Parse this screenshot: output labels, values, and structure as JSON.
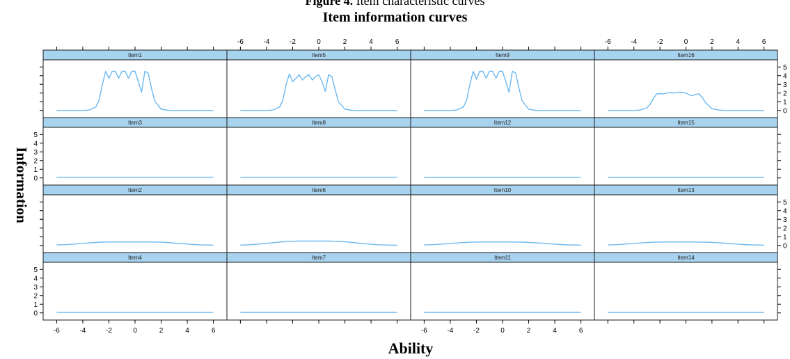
{
  "figure_caption": {
    "bold": "Figure 4.",
    "rest": " Item characteristic curves"
  },
  "chart_data": {
    "type": "line",
    "title": "Item information curves",
    "xlabel": "Ability",
    "ylabel": "Information",
    "xlim": [
      -6.5,
      6.5
    ],
    "ylim": [
      -0.5,
      5.5
    ],
    "xticks": [
      -6,
      -4,
      -2,
      0,
      2,
      4,
      6
    ],
    "yticks": [
      0,
      1,
      2,
      3,
      4,
      5
    ],
    "grid": false,
    "layout": {
      "rows": 4,
      "cols": 4
    },
    "x": [
      -6,
      -5.5,
      -5,
      -4.5,
      -4,
      -3.5,
      -3,
      -2.75,
      -2.5,
      -2.25,
      -2,
      -1.75,
      -1.5,
      -1.25,
      -1,
      -0.75,
      -0.5,
      -0.25,
      0,
      0.25,
      0.5,
      0.75,
      1,
      1.25,
      1.5,
      2,
      2.5,
      3,
      3.5,
      4,
      4.5,
      5,
      5.5,
      6
    ],
    "panels": [
      {
        "name": "Item1",
        "values": [
          0,
          0,
          0,
          0,
          0,
          0.05,
          0.4,
          1.2,
          3.0,
          4.5,
          3.7,
          4.5,
          4.5,
          3.7,
          4.5,
          4.5,
          3.7,
          4.5,
          4.5,
          3.3,
          2.1,
          4.5,
          4.3,
          2.6,
          1.1,
          0.15,
          0.02,
          0,
          0,
          0,
          0,
          0,
          0,
          0
        ]
      },
      {
        "name": "Item5",
        "values": [
          0,
          0,
          0,
          0,
          0,
          0.05,
          0.4,
          1.2,
          3.0,
          4.2,
          3.3,
          3.7,
          4.1,
          3.5,
          3.9,
          4.1,
          3.5,
          3.9,
          4.1,
          3.3,
          2.2,
          4.1,
          3.9,
          2.4,
          1.0,
          0.15,
          0.02,
          0,
          0,
          0,
          0,
          0,
          0,
          0
        ]
      },
      {
        "name": "Item9",
        "values": [
          0,
          0,
          0,
          0,
          0,
          0.05,
          0.4,
          1.2,
          3.0,
          4.5,
          3.6,
          4.5,
          4.5,
          3.7,
          4.5,
          4.5,
          3.7,
          4.5,
          4.5,
          3.3,
          2.1,
          4.5,
          4.3,
          2.6,
          1.1,
          0.15,
          0.02,
          0,
          0,
          0,
          0,
          0,
          0,
          0
        ]
      },
      {
        "name": "Item16",
        "values": [
          0,
          0,
          0,
          0,
          0,
          0.05,
          0.3,
          0.7,
          1.4,
          1.9,
          1.95,
          1.9,
          2.0,
          2.05,
          2.0,
          2.05,
          2.1,
          2.05,
          2.0,
          1.8,
          1.7,
          1.85,
          1.9,
          1.5,
          0.9,
          0.2,
          0.05,
          0,
          0,
          0,
          0,
          0,
          0,
          0
        ]
      },
      {
        "name": "Item3",
        "values": [
          0.08,
          0.08,
          0.08,
          0.08,
          0.08,
          0.08,
          0.08,
          0.08,
          0.08,
          0.08,
          0.08,
          0.08,
          0.08,
          0.08,
          0.08,
          0.08,
          0.08,
          0.08,
          0.08,
          0.08,
          0.08,
          0.08,
          0.08,
          0.08,
          0.08,
          0.08,
          0.08,
          0.08,
          0.08,
          0.08,
          0.08,
          0.08,
          0.08,
          0.08
        ]
      },
      {
        "name": "Item8",
        "values": [
          0.08,
          0.08,
          0.08,
          0.08,
          0.08,
          0.08,
          0.08,
          0.08,
          0.08,
          0.08,
          0.08,
          0.08,
          0.08,
          0.08,
          0.08,
          0.08,
          0.08,
          0.08,
          0.08,
          0.08,
          0.08,
          0.08,
          0.08,
          0.08,
          0.08,
          0.08,
          0.08,
          0.08,
          0.08,
          0.08,
          0.08,
          0.08,
          0.08,
          0.08
        ]
      },
      {
        "name": "Item12",
        "values": [
          0.07,
          0.07,
          0.07,
          0.07,
          0.07,
          0.07,
          0.07,
          0.07,
          0.07,
          0.07,
          0.07,
          0.07,
          0.07,
          0.07,
          0.07,
          0.07,
          0.07,
          0.07,
          0.07,
          0.07,
          0.07,
          0.07,
          0.07,
          0.07,
          0.07,
          0.07,
          0.07,
          0.07,
          0.07,
          0.07,
          0.07,
          0.07,
          0.07,
          0.07
        ]
      },
      {
        "name": "Item15",
        "values": [
          0.05,
          0.05,
          0.05,
          0.05,
          0.05,
          0.05,
          0.05,
          0.05,
          0.05,
          0.05,
          0.05,
          0.05,
          0.05,
          0.05,
          0.05,
          0.05,
          0.05,
          0.05,
          0.05,
          0.05,
          0.05,
          0.05,
          0.05,
          0.05,
          0.05,
          0.05,
          0.05,
          0.05,
          0.05,
          0.05,
          0.05,
          0.05,
          0.05,
          0.05
        ]
      },
      {
        "name": "Item2",
        "values": [
          0.05,
          0.08,
          0.12,
          0.17,
          0.23,
          0.29,
          0.34,
          0.36,
          0.38,
          0.39,
          0.4,
          0.4,
          0.4,
          0.4,
          0.4,
          0.4,
          0.4,
          0.4,
          0.4,
          0.4,
          0.4,
          0.4,
          0.4,
          0.4,
          0.39,
          0.37,
          0.33,
          0.28,
          0.22,
          0.16,
          0.11,
          0.07,
          0.05,
          0.03
        ]
      },
      {
        "name": "Item6",
        "values": [
          0.04,
          0.07,
          0.11,
          0.17,
          0.24,
          0.32,
          0.39,
          0.42,
          0.45,
          0.47,
          0.48,
          0.49,
          0.5,
          0.5,
          0.5,
          0.5,
          0.5,
          0.5,
          0.5,
          0.5,
          0.5,
          0.5,
          0.49,
          0.48,
          0.46,
          0.42,
          0.36,
          0.28,
          0.2,
          0.13,
          0.08,
          0.05,
          0.03,
          0.02
        ]
      },
      {
        "name": "Item10",
        "values": [
          0.05,
          0.08,
          0.12,
          0.17,
          0.23,
          0.28,
          0.33,
          0.35,
          0.37,
          0.38,
          0.39,
          0.39,
          0.4,
          0.4,
          0.4,
          0.4,
          0.4,
          0.4,
          0.4,
          0.4,
          0.4,
          0.39,
          0.39,
          0.38,
          0.37,
          0.35,
          0.31,
          0.26,
          0.2,
          0.15,
          0.1,
          0.07,
          0.05,
          0.03
        ]
      },
      {
        "name": "Item13",
        "values": [
          0.05,
          0.08,
          0.12,
          0.17,
          0.23,
          0.28,
          0.33,
          0.35,
          0.37,
          0.38,
          0.39,
          0.39,
          0.4,
          0.4,
          0.4,
          0.4,
          0.4,
          0.4,
          0.4,
          0.4,
          0.4,
          0.39,
          0.39,
          0.38,
          0.37,
          0.35,
          0.31,
          0.26,
          0.2,
          0.15,
          0.1,
          0.07,
          0.05,
          0.03
        ]
      },
      {
        "name": "Item4",
        "values": [
          0.05,
          0.05,
          0.05,
          0.05,
          0.05,
          0.05,
          0.05,
          0.05,
          0.05,
          0.05,
          0.05,
          0.05,
          0.05,
          0.05,
          0.05,
          0.05,
          0.05,
          0.05,
          0.05,
          0.05,
          0.05,
          0.05,
          0.05,
          0.05,
          0.05,
          0.05,
          0.05,
          0.05,
          0.05,
          0.05,
          0.05,
          0.05,
          0.05,
          0.05
        ]
      },
      {
        "name": "Item7",
        "values": [
          0.06,
          0.06,
          0.06,
          0.06,
          0.06,
          0.06,
          0.06,
          0.06,
          0.06,
          0.06,
          0.06,
          0.06,
          0.06,
          0.06,
          0.06,
          0.06,
          0.06,
          0.06,
          0.06,
          0.06,
          0.06,
          0.06,
          0.06,
          0.06,
          0.06,
          0.06,
          0.06,
          0.06,
          0.06,
          0.06,
          0.06,
          0.06,
          0.06,
          0.06
        ]
      },
      {
        "name": "Item11",
        "values": [
          0.06,
          0.06,
          0.06,
          0.06,
          0.06,
          0.06,
          0.06,
          0.06,
          0.06,
          0.06,
          0.06,
          0.06,
          0.06,
          0.06,
          0.06,
          0.06,
          0.06,
          0.06,
          0.06,
          0.06,
          0.06,
          0.06,
          0.06,
          0.06,
          0.06,
          0.06,
          0.06,
          0.06,
          0.06,
          0.06,
          0.06,
          0.06,
          0.06,
          0.06
        ]
      },
      {
        "name": "Item14",
        "values": [
          0.05,
          0.05,
          0.05,
          0.05,
          0.05,
          0.05,
          0.05,
          0.05,
          0.05,
          0.05,
          0.05,
          0.05,
          0.05,
          0.05,
          0.05,
          0.05,
          0.05,
          0.05,
          0.05,
          0.05,
          0.05,
          0.05,
          0.05,
          0.05,
          0.05,
          0.05,
          0.05,
          0.05,
          0.05,
          0.05,
          0.05,
          0.05,
          0.05,
          0.05
        ]
      }
    ],
    "colors": {
      "strip_fill": "#a8d3ef",
      "strip_border": "#1a1a1a",
      "line": "#6cb8f0",
      "frame": "#1a1a1a"
    }
  }
}
